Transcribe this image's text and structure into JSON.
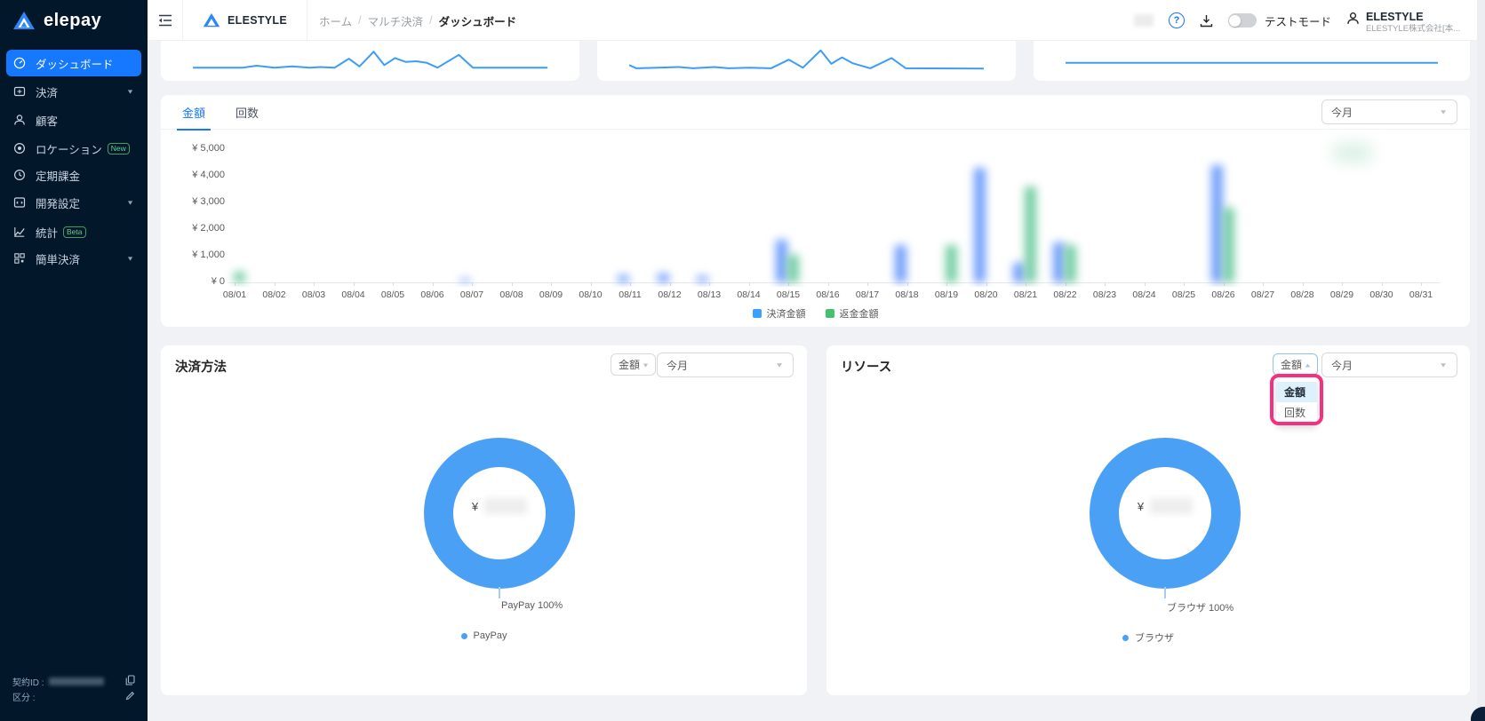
{
  "sidebar": {
    "logo_text": "elepay",
    "items": [
      {
        "label": "ダッシュボード",
        "icon": "dashboard-icon",
        "selected": true
      },
      {
        "label": "決済",
        "icon": "transaction-icon",
        "chevron": true
      },
      {
        "label": "顧客",
        "icon": "customer-icon"
      },
      {
        "label": "ロケーション",
        "icon": "location-icon",
        "badge": "New"
      },
      {
        "label": "定期課金",
        "icon": "recurring-billing-icon"
      },
      {
        "label": "開発設定",
        "icon": "dev-settings-icon",
        "chevron": true
      },
      {
        "label": "統計",
        "icon": "stats-icon",
        "badge": "Beta"
      },
      {
        "label": "簡単決済",
        "icon": "easy-payment-icon",
        "chevron": true
      }
    ],
    "footer": {
      "contract_label": "契約ID :",
      "kubun_label": "区分 :"
    }
  },
  "header": {
    "org_name": "ELESTYLE",
    "breadcrumb": [
      "ホーム",
      "マルチ決済",
      "ダッシュボード"
    ],
    "separator": "/",
    "test_mode_label": "テストモード",
    "help_glyph": "?",
    "user": {
      "name": "ELESTYLE",
      "org": "ELESTYLE株式会社[本..."
    }
  },
  "colors": {
    "sidebar_bg": "#03172b",
    "accent_blue": "#1677ff",
    "donut_blue": "#4aa0f5",
    "bar_blue": "#5b8ff9",
    "bar_green": "#5ad8a6",
    "annotation_pink": "#f5317f",
    "page_bg": "#f0f2f5"
  },
  "chart_data": [
    {
      "type": "line",
      "name": "mini-trend-1",
      "color": "#3d9df6",
      "points": [
        [
          0,
          70
        ],
        [
          14,
          70
        ],
        [
          18,
          64
        ],
        [
          23,
          70
        ],
        [
          28,
          66
        ],
        [
          33,
          70
        ],
        [
          36,
          68
        ],
        [
          40,
          70
        ],
        [
          44,
          42
        ],
        [
          47,
          66
        ],
        [
          51,
          20
        ],
        [
          54,
          62
        ],
        [
          57,
          40
        ],
        [
          60,
          52
        ],
        [
          63,
          50
        ],
        [
          66,
          55
        ],
        [
          69,
          70
        ],
        [
          75,
          30
        ],
        [
          79,
          70
        ],
        [
          100,
          70
        ]
      ]
    },
    {
      "type": "line",
      "name": "mini-trend-2",
      "color": "#3d9df6",
      "points": [
        [
          0,
          62
        ],
        [
          2,
          72
        ],
        [
          8,
          70
        ],
        [
          14,
          68
        ],
        [
          18,
          72
        ],
        [
          24,
          68
        ],
        [
          28,
          72
        ],
        [
          34,
          70
        ],
        [
          40,
          72
        ],
        [
          45,
          45
        ],
        [
          49,
          70
        ],
        [
          54,
          16
        ],
        [
          57,
          58
        ],
        [
          60,
          38
        ],
        [
          63,
          56
        ],
        [
          68,
          72
        ],
        [
          74,
          40
        ],
        [
          78,
          72
        ],
        [
          100,
          73
        ]
      ]
    },
    {
      "type": "line",
      "name": "mini-trend-3",
      "color": "#3d9df6",
      "points": [
        [
          0,
          55
        ],
        [
          100,
          55
        ]
      ]
    },
    {
      "type": "bar",
      "tabs": [
        "金額",
        "回数"
      ],
      "active_tab": "金額",
      "period": "今月",
      "categories": [
        "08/01",
        "08/02",
        "08/03",
        "08/04",
        "08/05",
        "08/06",
        "08/07",
        "08/08",
        "08/09",
        "08/10",
        "08/11",
        "08/12",
        "08/13",
        "08/14",
        "08/15",
        "08/16",
        "08/17",
        "08/18",
        "08/19",
        "08/20",
        "08/21",
        "08/22",
        "08/23",
        "08/24",
        "08/25",
        "08/26",
        "08/27",
        "08/28",
        "08/29",
        "08/30",
        "08/31"
      ],
      "yticks": [
        "¥ 0",
        "¥ 1,000",
        "¥ 2,000",
        "¥ 3,000",
        "¥ 4,000",
        "¥ 5,000"
      ],
      "ylim": [
        0,
        5000
      ],
      "note": "bar values are privacy-blurred in source; heights estimated",
      "series": [
        {
          "name": "決済金額",
          "color": "rgba(91,143,249,0.85)",
          "legend_color": "#3aa1ff",
          "values": [
            0,
            0,
            0,
            0,
            0,
            0,
            120,
            0,
            0,
            0,
            260,
            320,
            230,
            0,
            1600,
            0,
            0,
            1400,
            0,
            4300,
            750,
            1500,
            0,
            0,
            0,
            4400,
            0,
            0,
            0,
            0,
            0
          ]
        },
        {
          "name": "返金金額",
          "color": "rgba(96,198,150,0.85)",
          "legend_color": "#44c26d",
          "values": [
            400,
            0,
            0,
            0,
            0,
            0,
            0,
            0,
            0,
            0,
            0,
            0,
            0,
            0,
            1050,
            0,
            0,
            0,
            1400,
            0,
            3600,
            1400,
            0,
            0,
            0,
            2800,
            0,
            0,
            0,
            0,
            0
          ]
        }
      ]
    },
    {
      "type": "pie",
      "card": "決済方法",
      "metric": "金額",
      "period": "今月",
      "center_currency": "¥",
      "slices": [
        {
          "label": "PayPay",
          "pct": 100,
          "color": "#4aa0f5"
        }
      ],
      "callout": "PayPay 100%",
      "legend": [
        "PayPay"
      ]
    },
    {
      "type": "pie",
      "card": "リソース",
      "metric": "金額",
      "period": "今月",
      "center_currency": "¥",
      "slices": [
        {
          "label": "ブラウザ",
          "pct": 100,
          "color": "#4aa0f5"
        }
      ],
      "callout": "ブラウザ 100%",
      "legend": [
        "ブラウザ"
      ],
      "dropdown_open": true,
      "dropdown_options": [
        "金額",
        "回数"
      ],
      "dropdown_selected": "金額"
    }
  ]
}
